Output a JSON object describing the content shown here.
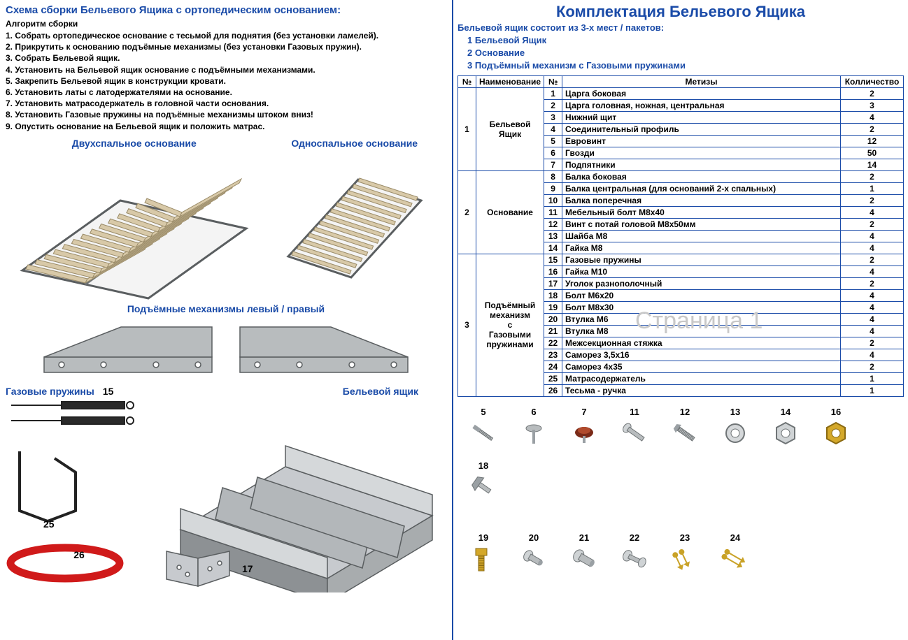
{
  "left": {
    "title": "Схема сборки Бельевого Ящика с ортопедическим основанием:",
    "algo_title": "Алгоритм сборки",
    "steps": [
      "1. Собрать ортопедическое основание с тесьмой для поднятия (без установки ламелей).",
      "2. Прикрутить к основанию подъёмные механизмы (без установки Газовых пружин).",
      "3. Собрать Бельевой ящик.",
      "4. Установить на Бельевой ящик основание с подъёмными механизмами.",
      "5. Закрепить Бельевой ящик в конструкции кровати.",
      "6. Установить латы с латодержателями на основание.",
      "7. Установить матрасодержатель в головной части основания.",
      "8. Установить Газовые пружины на подъёмные механизмы штоком вниз!",
      "9. Опустить основание на Бельевой ящик и положить матрас."
    ],
    "base_double": "Двухспальное основание",
    "base_single": "Односпальное основание",
    "mech_title": "Подъёмные  механизмы левый / правый",
    "gas_label": "Газовые пружины",
    "gas_num": "15",
    "box_label": "Бельевой ящик",
    "holder_num": "25",
    "strap_num": "26",
    "bracket_num": "17"
  },
  "right": {
    "title": "Комплектация Бельевого Ящика",
    "subtitle": "Бельевой ящик состоит из 3-х мест / пакетов:",
    "packages": [
      "1   Бельевой Ящик",
      "2   Основание",
      "3   Подъёмный механизм с Газовыми пружинами"
    ],
    "headers": {
      "no": "№",
      "name": "Наименование",
      "no2": "№",
      "metizy": "Метизы",
      "qty": "Колличество"
    },
    "groups": [
      {
        "no": "1",
        "name": "Бельевой Ящик",
        "rows": [
          {
            "n": "1",
            "t": "Царга боковая",
            "q": "2"
          },
          {
            "n": "2",
            "t": "Царга головная, ножная, центральная",
            "q": "3"
          },
          {
            "n": "3",
            "t": "Нижний щит",
            "q": "4"
          },
          {
            "n": "4",
            "t": "Соединительный профиль",
            "q": "2"
          },
          {
            "n": "5",
            "t": "Евровинт",
            "q": "12"
          },
          {
            "n": "6",
            "t": "Гвозди",
            "q": "50"
          },
          {
            "n": "7",
            "t": "Подпятники",
            "q": "14"
          }
        ]
      },
      {
        "no": "2",
        "name": "Основание",
        "rows": [
          {
            "n": "8",
            "t": "Балка боковая",
            "q": "2"
          },
          {
            "n": "9",
            "t": "Балка центральная (для оснований 2-х спальных)",
            "q": "1"
          },
          {
            "n": "10",
            "t": "Балка поперечная",
            "q": "2"
          },
          {
            "n": "11",
            "t": "Мебельный болт М8х40",
            "q": "4"
          },
          {
            "n": "12",
            "t": "Винт с потай головой М8х50мм",
            "q": "2"
          },
          {
            "n": "13",
            "t": "Шайба М8",
            "q": "4"
          },
          {
            "n": "14",
            "t": "Гайка М8",
            "q": "4"
          }
        ]
      },
      {
        "no": "3",
        "name": "Подъёмный механизм с Газовыми пружинами",
        "rows": [
          {
            "n": "15",
            "t": "Газовые пружины",
            "q": "2"
          },
          {
            "n": "16",
            "t": "Гайка М10",
            "q": "4"
          },
          {
            "n": "17",
            "t": "Уголок разнополочный",
            "q": "2"
          },
          {
            "n": "18",
            "t": "Болт М6х20",
            "q": "4"
          },
          {
            "n": "19",
            "t": "Болт М8х30",
            "q": "4"
          },
          {
            "n": "20",
            "t": "Втулка М6",
            "q": "4"
          },
          {
            "n": "21",
            "t": "Втулка М8",
            "q": "4"
          },
          {
            "n": "22",
            "t": "Межсекционная стяжка",
            "q": "2"
          },
          {
            "n": "23",
            "t": "Саморез 3,5х16",
            "q": "4"
          },
          {
            "n": "24",
            "t": "Саморез 4х35",
            "q": "2"
          },
          {
            "n": "25",
            "t": "Матрасодержатель",
            "q": "1"
          },
          {
            "n": "26",
            "t": "Тесьма - ручка",
            "q": "1"
          }
        ]
      }
    ],
    "watermark": "Страница 1",
    "hardware": [
      "5",
      "6",
      "7",
      "11",
      "12",
      "13",
      "14",
      "16",
      "18",
      "19",
      "20",
      "21",
      "22",
      "23",
      "24"
    ],
    "hw_colors": {
      "metal": "#a8acae",
      "metal_dark": "#6f7476",
      "brass": "#c9a227",
      "red": "#b01818"
    }
  },
  "colors": {
    "blue": "#1a4ba8",
    "slat": "#d8c9a8",
    "frame": "#9aa0a4",
    "box_light": "#bcbfc2",
    "box_dark": "#8d9194",
    "red": "#d01a1a"
  }
}
